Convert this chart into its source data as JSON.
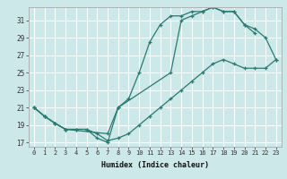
{
  "xlabel": "Humidex (Indice chaleur)",
  "bg_color": "#cce8e8",
  "grid_color": "#ffffff",
  "line_color": "#2a7a70",
  "xlim": [
    -0.5,
    23.5
  ],
  "ylim": [
    16.5,
    32.5
  ],
  "yticks": [
    17,
    19,
    21,
    23,
    25,
    27,
    29,
    31
  ],
  "xticks": [
    0,
    1,
    2,
    3,
    4,
    5,
    6,
    7,
    8,
    9,
    10,
    11,
    12,
    13,
    14,
    15,
    16,
    17,
    18,
    19,
    20,
    21,
    22,
    23
  ],
  "line1_x": [
    0,
    1,
    2,
    3,
    4,
    5,
    6,
    7,
    8,
    9,
    10,
    11,
    12,
    13,
    14,
    15,
    16,
    17,
    18,
    19,
    20,
    21
  ],
  "line1_y": [
    21.0,
    20.0,
    19.2,
    18.5,
    18.5,
    18.5,
    17.5,
    17.0,
    21.0,
    22.0,
    25.0,
    28.5,
    30.5,
    31.5,
    31.5,
    32.0,
    32.0,
    32.5,
    32.0,
    32.0,
    30.5,
    29.5
  ],
  "line2_x": [
    0,
    1,
    2,
    3,
    7,
    8,
    13,
    14,
    15,
    16,
    17,
    18,
    19,
    20,
    21,
    22,
    23
  ],
  "line2_y": [
    21.0,
    20.0,
    19.2,
    18.5,
    18.0,
    21.0,
    25.0,
    31.0,
    31.5,
    32.0,
    32.5,
    32.0,
    32.0,
    30.5,
    30.0,
    29.0,
    26.5
  ],
  "line3_x": [
    0,
    1,
    2,
    3,
    4,
    5,
    6,
    7,
    8,
    9,
    10,
    11,
    12,
    13,
    14,
    15,
    16,
    17,
    18,
    19,
    20,
    21,
    22,
    23
  ],
  "line3_y": [
    21.0,
    20.0,
    19.2,
    18.5,
    18.5,
    18.5,
    18.0,
    17.2,
    17.5,
    18.0,
    19.0,
    20.0,
    21.0,
    22.0,
    23.0,
    24.0,
    25.0,
    26.0,
    26.5,
    26.0,
    25.5,
    25.5,
    25.5,
    26.5
  ]
}
